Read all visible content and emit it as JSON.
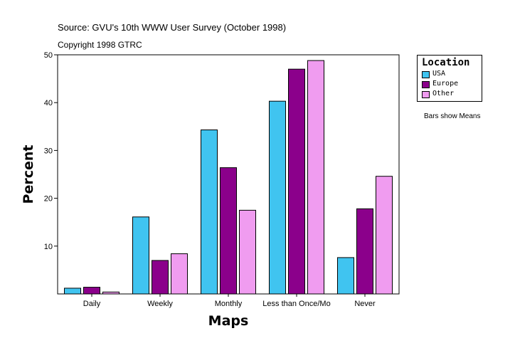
{
  "header": {
    "source": "Source: GVU's 10th WWW User Survey (October 1998)",
    "copyright": "Copyright 1998 GTRC"
  },
  "legend": {
    "title": "Location",
    "placement": "right"
  },
  "note": "Bars show Means",
  "chart_data": {
    "type": "bar",
    "title": "",
    "xlabel": "Maps",
    "ylabel": "Percent",
    "categories": [
      "Daily",
      "Weekly",
      "Monthly",
      "Less than Once/Mo",
      "Never"
    ],
    "series": [
      {
        "name": "USA",
        "color": "#40c4f0",
        "values": [
          1.2,
          16.1,
          34.3,
          40.3,
          7.6
        ]
      },
      {
        "name": "Europe",
        "color": "#8b008b",
        "values": [
          1.4,
          7.0,
          26.4,
          47.0,
          17.8
        ]
      },
      {
        "name": "Other",
        "color": "#f09cf0",
        "values": [
          0.4,
          8.4,
          17.5,
          48.8,
          24.6
        ]
      }
    ],
    "ylim": [
      0,
      50
    ],
    "yticks": [
      10,
      20,
      30,
      40,
      50
    ],
    "grid": false
  }
}
